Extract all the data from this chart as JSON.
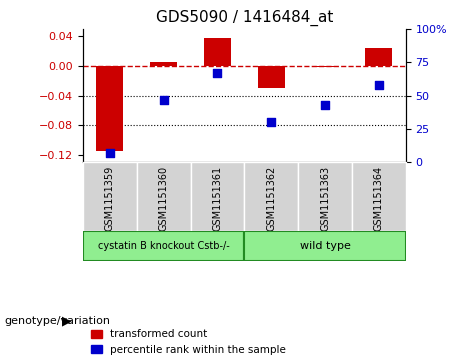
{
  "title": "GDS5090 / 1416484_at",
  "samples": [
    "GSM1151359",
    "GSM1151360",
    "GSM1151361",
    "GSM1151362",
    "GSM1151363",
    "GSM1151364"
  ],
  "bar_values": [
    -0.115,
    0.005,
    0.038,
    -0.03,
    -0.001,
    0.025
  ],
  "dot_values": [
    7,
    47,
    67,
    30,
    43,
    58
  ],
  "group1_label": "cystatin B knockout Cstb-/-",
  "group2_label": "wild type",
  "group1_indices": [
    0,
    1,
    2
  ],
  "group2_indices": [
    3,
    4,
    5
  ],
  "ylabel_left": "",
  "ylabel_right": "",
  "ylim_left": [
    -0.13,
    0.05
  ],
  "ylim_right": [
    0,
    100
  ],
  "yticks_left": [
    0.04,
    0,
    -0.04,
    -0.08,
    -0.12
  ],
  "yticks_right": [
    100,
    75,
    50,
    25,
    0
  ],
  "bar_color": "#cc0000",
  "dot_color": "#0000cc",
  "ref_line_y": 0,
  "dotted_lines": [
    -0.04,
    -0.08
  ],
  "legend_bar_label": "transformed count",
  "legend_dot_label": "percentile rank within the sample",
  "genotype_label": "genotype/variation",
  "group1_color": "#90ee90",
  "group2_color": "#90ee90",
  "group_border_color": "#228B22",
  "tick_label_area_color": "#d3d3d3",
  "background_color": "#ffffff",
  "plot_bg_color": "#ffffff"
}
